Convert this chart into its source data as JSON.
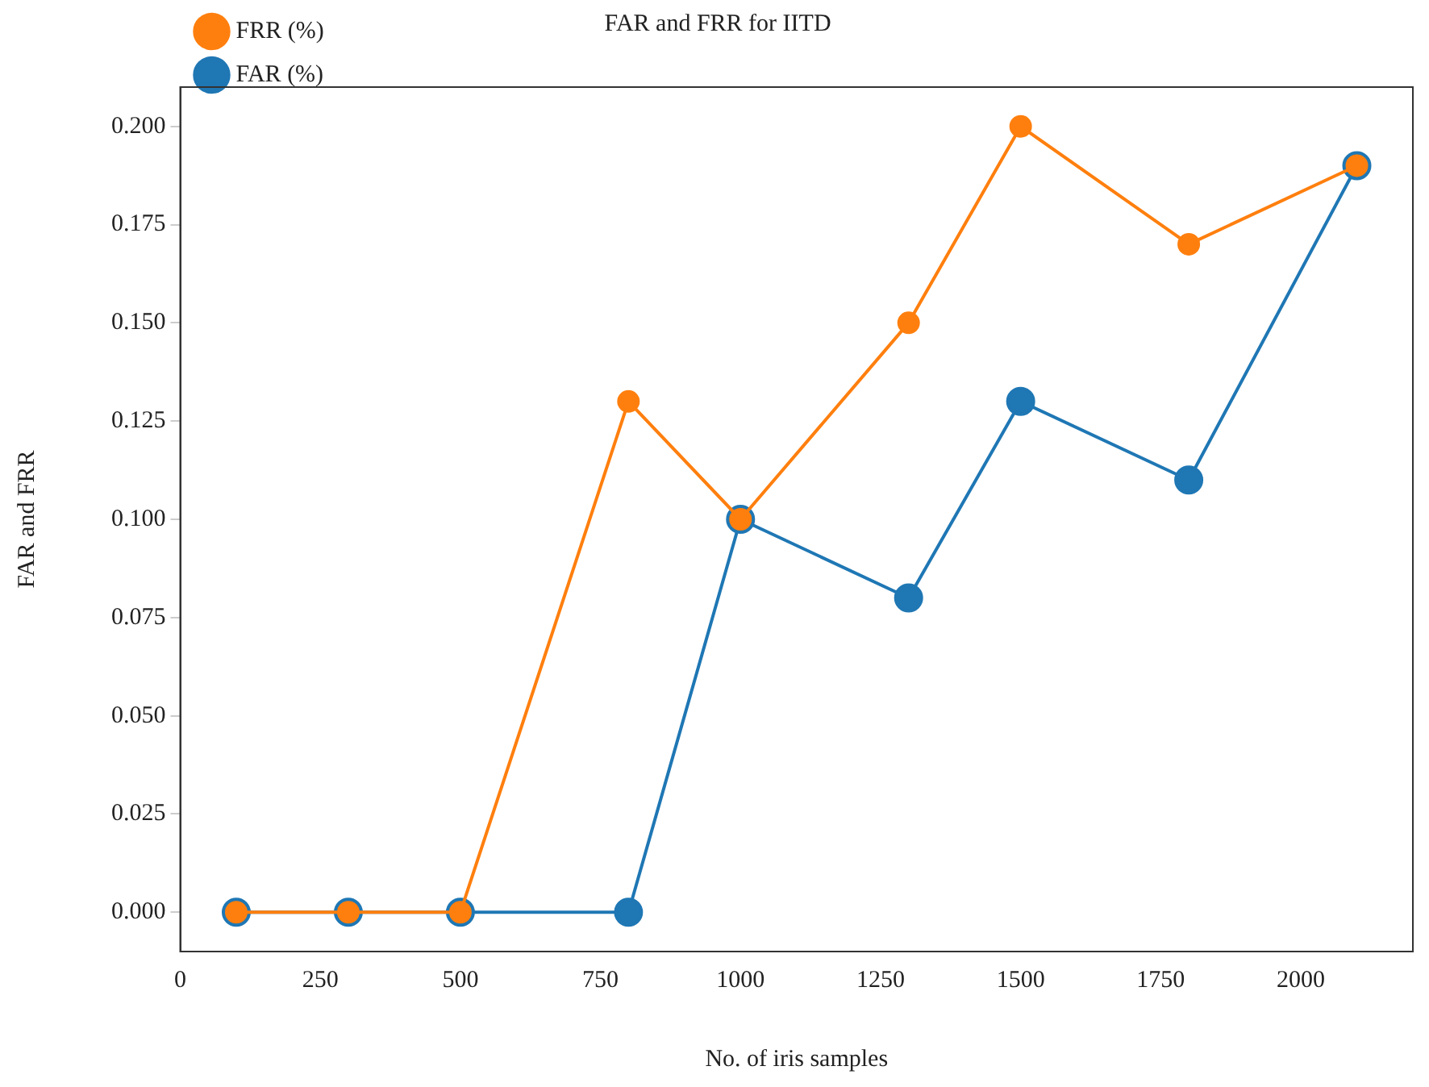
{
  "chart_data": {
    "type": "line",
    "title": "FAR and FRR for IITD",
    "xlabel": "No. of iris samples",
    "ylabel": "FAR and FRR",
    "x": [
      100,
      300,
      500,
      800,
      1000,
      1300,
      1500,
      1800,
      2100
    ],
    "series": [
      {
        "name": "FAR (%)",
        "color": "#1f77b4",
        "values": [
          0,
          0,
          0,
          0,
          0.1,
          0.08,
          0.13,
          0.11,
          0.19
        ]
      },
      {
        "name": "FRR (%)",
        "color": "#ff7f0e",
        "values": [
          0,
          0,
          0,
          0.13,
          0.1,
          0.15,
          0.2,
          0.17,
          0.19
        ]
      }
    ],
    "xlim": [
      0,
      2200
    ],
    "xticks": [
      0,
      250,
      500,
      750,
      1000,
      1250,
      1500,
      1750,
      2000
    ],
    "ylim": [
      -0.01,
      0.21
    ],
    "yticks": [
      {
        "value": 0,
        "label": "0.000"
      },
      {
        "value": 0.025,
        "label": "0.025"
      },
      {
        "value": 0.05,
        "label": "0.050"
      },
      {
        "value": 0.075,
        "label": "0.075"
      },
      {
        "value": 0.1,
        "label": "0.100"
      },
      {
        "value": 0.125,
        "label": "0.125"
      },
      {
        "value": 0.15,
        "label": "0.150"
      },
      {
        "value": 0.175,
        "label": "0.175"
      },
      {
        "value": 0.2,
        "label": "0.200"
      }
    ],
    "grid": false,
    "legend": "top left",
    "marker": "circle",
    "line_style": "solid"
  }
}
